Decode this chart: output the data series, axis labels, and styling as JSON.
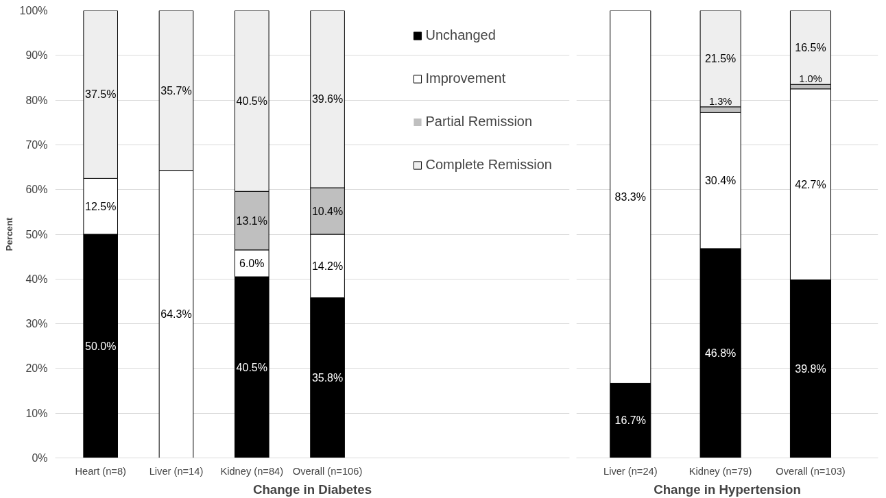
{
  "chart_data": [
    {
      "type": "bar",
      "stacked": true,
      "xlabel": "Change in Diabetes",
      "ylabel": "Percent",
      "categories": [
        "Heart (n=8)",
        "Liver (n=14)",
        "Kidney (n=84)",
        "Overall (n=106)"
      ],
      "series": [
        {
          "name": "Unchanged",
          "color": "#000000",
          "values": [
            50.0,
            0,
            40.5,
            35.8
          ],
          "value_labels": [
            "50.0%",
            null,
            "40.5%",
            "35.8%"
          ]
        },
        {
          "name": "Improvement",
          "color": "#ffffff",
          "values": [
            12.5,
            64.3,
            6.0,
            14.2
          ],
          "value_labels": [
            "12.5%",
            "64.3%",
            "6.0%",
            "14.2%"
          ]
        },
        {
          "name": "Partial Remission",
          "color": "#bfbfbf",
          "values": [
            0,
            0,
            13.1,
            10.4
          ],
          "value_labels": [
            null,
            null,
            "13.1%",
            "10.4%"
          ]
        },
        {
          "name": "Complete Remission",
          "color": "#eeeeee",
          "values": [
            37.5,
            35.7,
            40.5,
            39.6
          ],
          "value_labels": [
            "37.5%",
            "35.7%",
            "40.5%",
            "39.6%"
          ]
        }
      ],
      "ylim": [
        0,
        100
      ],
      "yticks": [
        {
          "value": 0,
          "label": "0%"
        },
        {
          "value": 10,
          "label": "10%"
        },
        {
          "value": 20,
          "label": "20%"
        },
        {
          "value": 30,
          "label": "30%"
        },
        {
          "value": 40,
          "label": "40%"
        },
        {
          "value": 50,
          "label": "50%"
        },
        {
          "value": 60,
          "label": "60%"
        },
        {
          "value": 70,
          "label": "70%"
        },
        {
          "value": 80,
          "label": "80%"
        },
        {
          "value": 90,
          "label": "90%"
        },
        {
          "value": 100,
          "label": "100%"
        }
      ],
      "grid": "y",
      "legend": "right"
    },
    {
      "type": "bar",
      "stacked": true,
      "xlabel": "Change in Hypertension",
      "categories": [
        "Liver (n=24)",
        "Kidney (n=79)",
        "Overall (n=103)"
      ],
      "series": [
        {
          "color": "#000000",
          "values": [
            16.7,
            46.8,
            39.8
          ],
          "value_labels": [
            "16.7%",
            "46.8%",
            "39.8%"
          ]
        },
        {
          "color": "#ffffff",
          "values": [
            83.3,
            30.4,
            42.7
          ],
          "value_labels": [
            "83.3%",
            "30.4%",
            "42.7%"
          ]
        },
        {
          "color": "#bfbfbf",
          "values": [
            0,
            1.3,
            1.0
          ],
          "value_labels": [
            null,
            "1.3%",
            "1.0%"
          ]
        },
        {
          "color": "#eeeeee",
          "values": [
            0,
            21.5,
            16.5
          ],
          "value_labels": [
            null,
            "21.5%",
            "16.5%"
          ]
        }
      ],
      "ylim": [
        0,
        100
      ],
      "yticks": [
        {
          "value": 0,
          "label": null
        },
        {
          "value": 10,
          "label": null
        },
        {
          "value": 20,
          "label": null
        },
        {
          "value": 30,
          "label": null
        },
        {
          "value": 40,
          "label": null
        },
        {
          "value": 50,
          "label": null
        },
        {
          "value": 60,
          "label": null
        },
        {
          "value": 70,
          "label": null
        },
        {
          "value": 80,
          "label": null
        },
        {
          "value": 90,
          "label": null
        },
        {
          "value": 100,
          "label": null
        }
      ],
      "grid": "y",
      "tick_labels": "x"
    }
  ]
}
